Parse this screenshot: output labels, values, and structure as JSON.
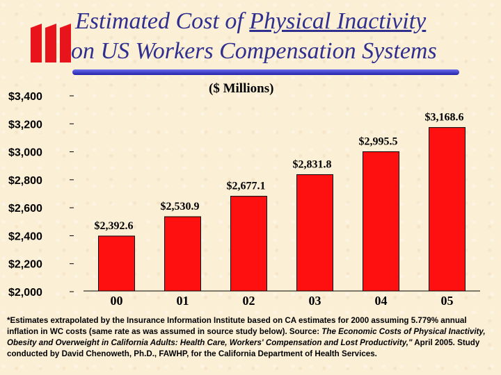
{
  "title": {
    "line1_prefix": "Estimated Cost of ",
    "line1_emph": "Physical Inactivity",
    "line2": "on US Workers Compensation Systems"
  },
  "colors": {
    "bar": "#ff1010",
    "title": "#2f2f8f",
    "rule": "#3a3ad0",
    "logo": "#e8141c"
  },
  "logo_icon": "iii-logo-icon",
  "chart_data": {
    "type": "bar",
    "title": "($ Millions)",
    "categories": [
      "00",
      "01",
      "02",
      "03",
      "04",
      "05"
    ],
    "values": [
      2392.6,
      2530.9,
      2677.1,
      2831.8,
      2995.5,
      3168.6
    ],
    "value_labels": [
      "$2,392.6",
      "$2,530.9",
      "$2,677.1",
      "$2,831.8",
      "$2,995.5",
      "$3,168.6"
    ],
    "y_ticks": [
      2000,
      2200,
      2400,
      2600,
      2800,
      3000,
      3200,
      3400
    ],
    "y_tick_labels": [
      "$2,000",
      "$2,200",
      "$2,400",
      "$2,600",
      "$2,800",
      "$3,000",
      "$3,200",
      "$3,400"
    ],
    "ylim": [
      2000,
      3400
    ],
    "grid": false
  },
  "footnote": {
    "p1": "*Estimates extrapolated by the Insurance Information Institute based on CA estimates for 2000 assuming 5.779% annual inflation in WC costs (same rate as was assumed in source study below). Source: ",
    "p2": "The Economic Costs of Physical Inactivity, Obesity and Overweight in California Adults: Health Care, Workers' Compensation and Lost Productivity,\"",
    "p3": " April 2005.  Study conducted by David Chenoweth, Ph.D., FAWHP, for the California Department of Health Services."
  }
}
